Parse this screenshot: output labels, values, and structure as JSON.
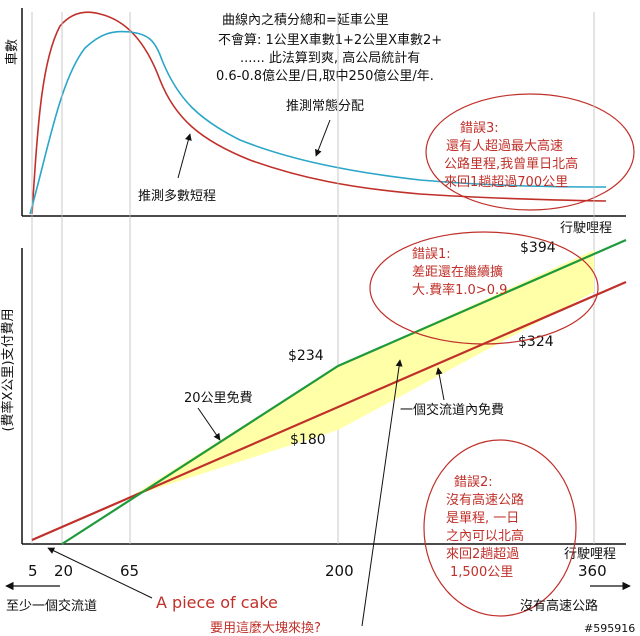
{
  "top_chart": {
    "ylabel": "車數",
    "xlabel": "行駛哩程",
    "note_lines": [
      "曲線內之積分總和=延車公里",
      "不會算: 1公里X車數1+2公里X車數2+",
      "...... 此法算到爽, 高公局統計有",
      "0.6-0.8億公里/日,取中250億公里/年."
    ],
    "label_normal": "推測常態分配",
    "label_short": "推測多數短程",
    "error3_lines": [
      "錯誤3:",
      "還有人超過最大高速",
      "公路里程,我曾單日北高",
      "來回1趟超過700公里"
    ]
  },
  "bottom_chart": {
    "ylabel": "(費率X公里)支付費用",
    "xlabel": "行駛哩程",
    "x_ticks": [
      "5",
      "20",
      "65",
      "200",
      "360"
    ],
    "price_labels": {
      "p394": "$394",
      "p324": "$324",
      "p234": "$234",
      "p180": "$180"
    },
    "label_20km_free": "20公里免費",
    "label_one_interchange_free": "一個交流道內免費",
    "error1_lines": [
      "錯誤1:",
      "差距還在繼續擴",
      "大.費率1.0>0.9"
    ],
    "error2_lines": [
      "錯誤2:",
      "沒有高速公路",
      "是單程, 一日",
      "之內可以北高",
      "來回2趟超過",
      "1,500公里"
    ],
    "left_arrow_label": "至少一個交流道",
    "right_arrow_label": "沒有高速公路",
    "piece_of_cake": "A piece of cake",
    "question": "要用這麼大塊來換?",
    "watermark": "#595916"
  },
  "colors": {
    "red": "#c0302a",
    "green": "#1f9a3a",
    "blue": "#2aa6c8",
    "yellow": "#ffffa8"
  }
}
